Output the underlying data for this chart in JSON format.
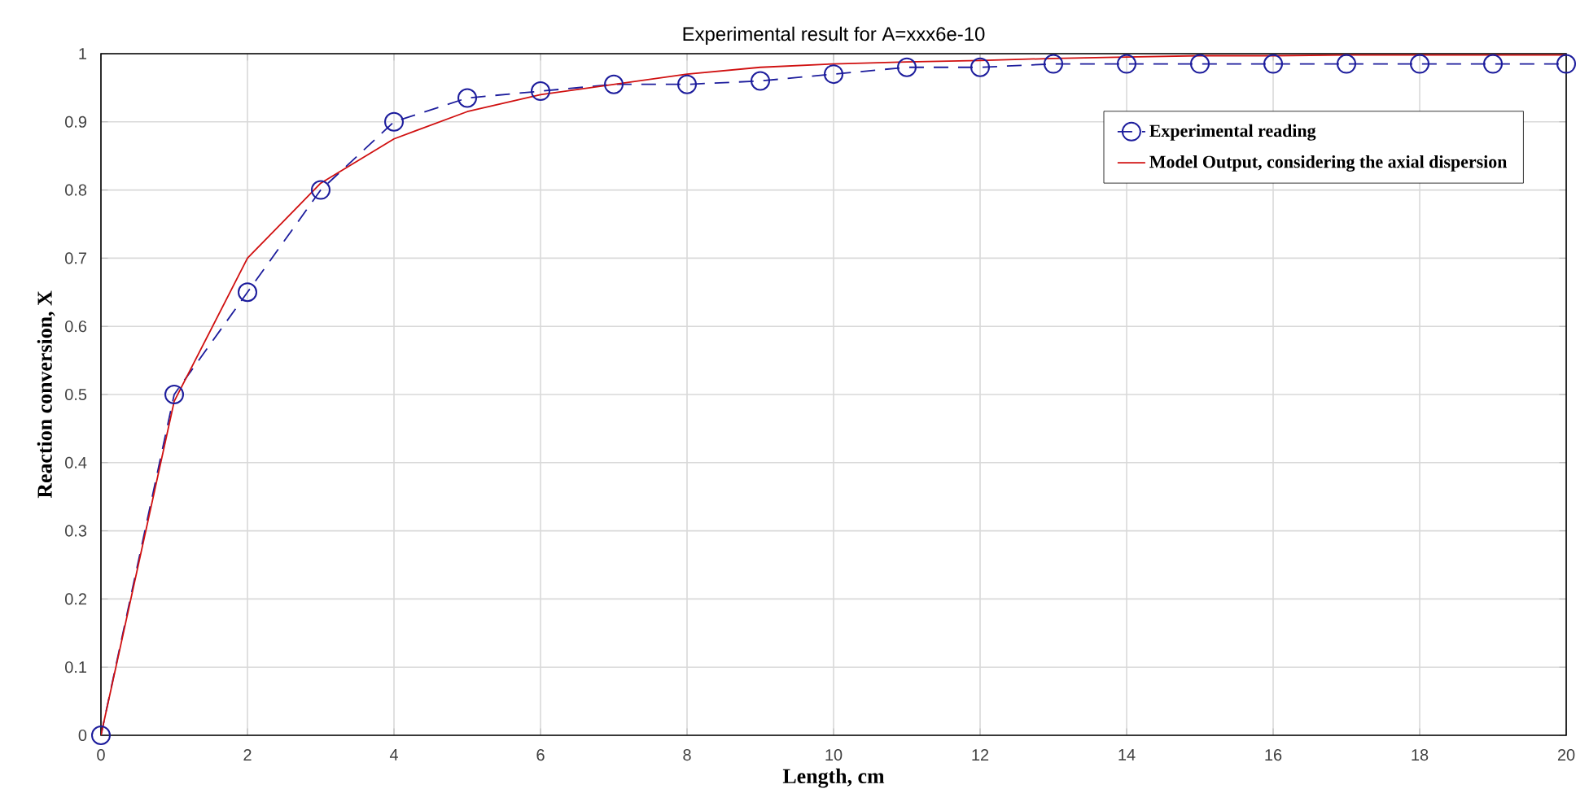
{
  "chart_data": {
    "type": "line",
    "title": "Experimental result for A=xxx6e-10",
    "xlabel": "Length, cm",
    "ylabel": "Reaction conversion, X",
    "x": [
      0,
      1,
      2,
      3,
      4,
      5,
      6,
      7,
      8,
      9,
      10,
      11,
      12,
      13,
      14,
      15,
      16,
      17,
      18,
      19,
      20
    ],
    "series": [
      {
        "name": "Experimental reading",
        "color": "#1c1c9c",
        "marker": "circle",
        "line_style": "dashed",
        "values": [
          0,
          0.5,
          0.65,
          0.8,
          0.9,
          0.935,
          0.945,
          0.955,
          0.955,
          0.96,
          0.97,
          0.98,
          0.98,
          0.985,
          0.985,
          0.985,
          0.985,
          0.985,
          0.985,
          0.985,
          0.985
        ]
      },
      {
        "name": "Model Output, considering the axial dispersion",
        "color": "#d01010",
        "marker": "none",
        "line_style": "solid",
        "values": [
          0,
          0.49,
          0.7,
          0.81,
          0.875,
          0.915,
          0.94,
          0.955,
          0.97,
          0.98,
          0.985,
          0.988,
          0.99,
          0.993,
          0.995,
          0.997,
          0.997,
          0.998,
          0.998,
          0.998,
          0.998
        ]
      }
    ],
    "xlim": [
      0,
      20
    ],
    "ylim": [
      0,
      1
    ],
    "xticks": [
      0,
      2,
      4,
      6,
      8,
      10,
      12,
      14,
      16,
      18,
      20
    ],
    "yticks": [
      0,
      0.1,
      0.2,
      0.3,
      0.4,
      0.5,
      0.6,
      0.7,
      0.8,
      0.9,
      1
    ],
    "grid": true,
    "legend": "top right"
  }
}
